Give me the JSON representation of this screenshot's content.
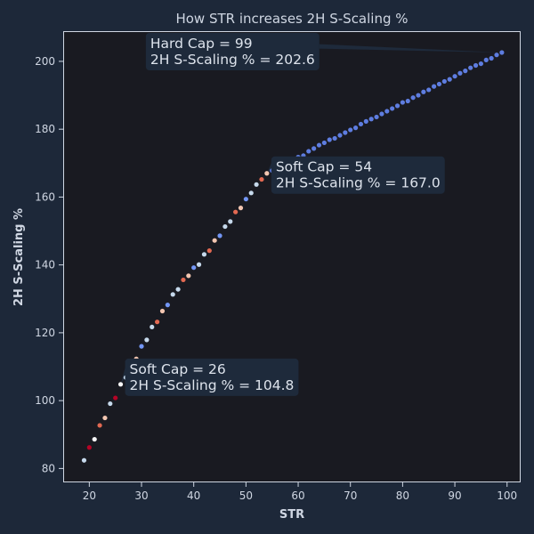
{
  "chart_data": {
    "type": "scatter",
    "title": "How STR increases 2H S-Scaling %",
    "xlabel": "STR",
    "ylabel": "2H S-Scaling %",
    "xlim": [
      15.0,
      102.6
    ],
    "ylim": [
      75.9,
      208.9
    ],
    "xticks": [
      20,
      30,
      40,
      50,
      60,
      70,
      80,
      90,
      100
    ],
    "yticks": [
      80,
      100,
      120,
      140,
      160,
      180,
      200
    ],
    "grid": false,
    "x": [
      19,
      20,
      21,
      22,
      23,
      24,
      25,
      26,
      27,
      28,
      29,
      30,
      31,
      32,
      33,
      34,
      35,
      36,
      37,
      38,
      39,
      40,
      41,
      42,
      43,
      44,
      45,
      46,
      47,
      48,
      49,
      50,
      51,
      52,
      53,
      54,
      55,
      56,
      57,
      58,
      59,
      60,
      61,
      62,
      63,
      64,
      65,
      66,
      67,
      68,
      69,
      70,
      71,
      72,
      73,
      74,
      75,
      76,
      77,
      78,
      79,
      80,
      81,
      82,
      83,
      84,
      85,
      86,
      87,
      88,
      89,
      90,
      91,
      92,
      93,
      94,
      95,
      96,
      97,
      98,
      99
    ],
    "y": [
      82.4,
      86.2,
      88.6,
      92.7,
      94.9,
      99.1,
      100.8,
      104.8,
      106.8,
      110.6,
      112.3,
      116.0,
      117.9,
      121.7,
      123.2,
      126.4,
      128.2,
      131.3,
      132.8,
      135.6,
      136.8,
      139.2,
      140.1,
      143.1,
      144.2,
      147.2,
      148.6,
      151.3,
      152.8,
      155.6,
      156.8,
      159.4,
      161.2,
      163.7,
      165.2,
      167.0,
      167.8,
      168.7,
      169.5,
      170.5,
      171.1,
      171.8,
      172.2,
      173.5,
      174.3,
      175.3,
      176.0,
      176.9,
      177.3,
      178.2,
      179.0,
      179.8,
      180.4,
      181.5,
      182.3,
      183.0,
      183.6,
      184.5,
      185.3,
      186.1,
      186.9,
      187.9,
      188.3,
      189.3,
      190.0,
      191.0,
      191.6,
      192.6,
      193.3,
      194.1,
      194.7,
      195.6,
      196.5,
      197.2,
      198.1,
      198.8,
      199.3,
      200.4,
      200.9,
      201.9,
      202.6
    ],
    "annotations": [
      {
        "label_lines": [
          "Soft Cap = 26",
          "2H S-Scaling % = 104.8"
        ],
        "point": [
          26,
          104.8
        ]
      },
      {
        "label_lines": [
          "Soft Cap = 54",
          "2H S-Scaling % = 167.0"
        ],
        "point": [
          54,
          167.0
        ]
      },
      {
        "label_lines": [
          "Hard Cap = 99",
          "2H S-Scaling % = 202.6"
        ],
        "point": [
          99,
          202.6
        ]
      }
    ]
  },
  "colors": {
    "background": "#1d2839",
    "plot_bg": "#191a21",
    "axis": "#cfd6e2",
    "annotation_bg": "#1e2a3b",
    "segment1_cycle": [
      "#c6d9ec",
      "#b40426",
      "#f7f7f7",
      "#e26952",
      "#f3c6b1"
    ],
    "segment2_cycle": [
      "#c6d9ec",
      "#e26952",
      "#f3c6b1",
      "#7396f5",
      "#c6d9ec"
    ],
    "segment3": "#5e7de0"
  }
}
